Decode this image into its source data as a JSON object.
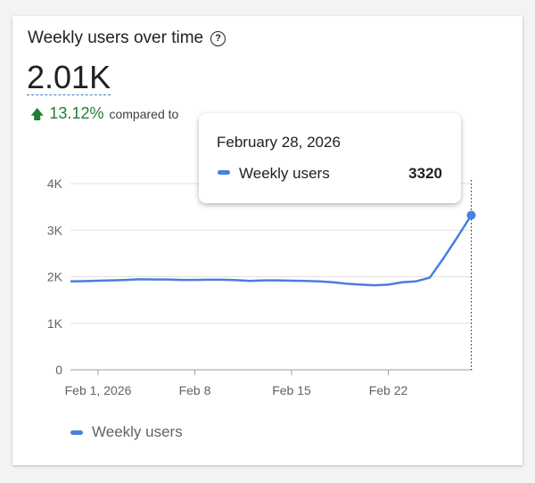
{
  "title": "Weekly users over time",
  "metric_value": "2.01K",
  "delta": {
    "value": "13.12%",
    "direction": "up",
    "text": "compared to",
    "color": "#1e7e34"
  },
  "tooltip": {
    "date": "February 28, 2026",
    "series": "Weekly users",
    "value": "3320"
  },
  "legend": {
    "label": "Weekly users"
  },
  "chart_data": {
    "type": "line",
    "x_start": "2026-01-30",
    "x": [
      "Jan 30",
      "Jan 31",
      "Feb 1",
      "Feb 2",
      "Feb 3",
      "Feb 4",
      "Feb 5",
      "Feb 6",
      "Feb 7",
      "Feb 8",
      "Feb 9",
      "Feb 10",
      "Feb 11",
      "Feb 12",
      "Feb 13",
      "Feb 14",
      "Feb 15",
      "Feb 16",
      "Feb 17",
      "Feb 18",
      "Feb 19",
      "Feb 20",
      "Feb 21",
      "Feb 22",
      "Feb 23",
      "Feb 24",
      "Feb 25",
      "Feb 26",
      "Feb 27",
      "Feb 28"
    ],
    "series": [
      {
        "name": "Weekly users",
        "color": "#4a7ee0",
        "values": [
          1900,
          1905,
          1915,
          1920,
          1930,
          1945,
          1940,
          1940,
          1930,
          1930,
          1935,
          1935,
          1925,
          1910,
          1920,
          1920,
          1915,
          1910,
          1900,
          1880,
          1850,
          1830,
          1815,
          1830,
          1880,
          1900,
          1980,
          2400,
          2850,
          3320
        ]
      }
    ],
    "x_ticks": [
      "Feb 1, 2026",
      "Feb 8",
      "Feb 15",
      "Feb 22"
    ],
    "y_ticks": [
      "0",
      "1K",
      "2K",
      "3K",
      "4K"
    ],
    "ylim": [
      0,
      4000
    ],
    "grid": true,
    "highlighted": "Feb 28"
  }
}
